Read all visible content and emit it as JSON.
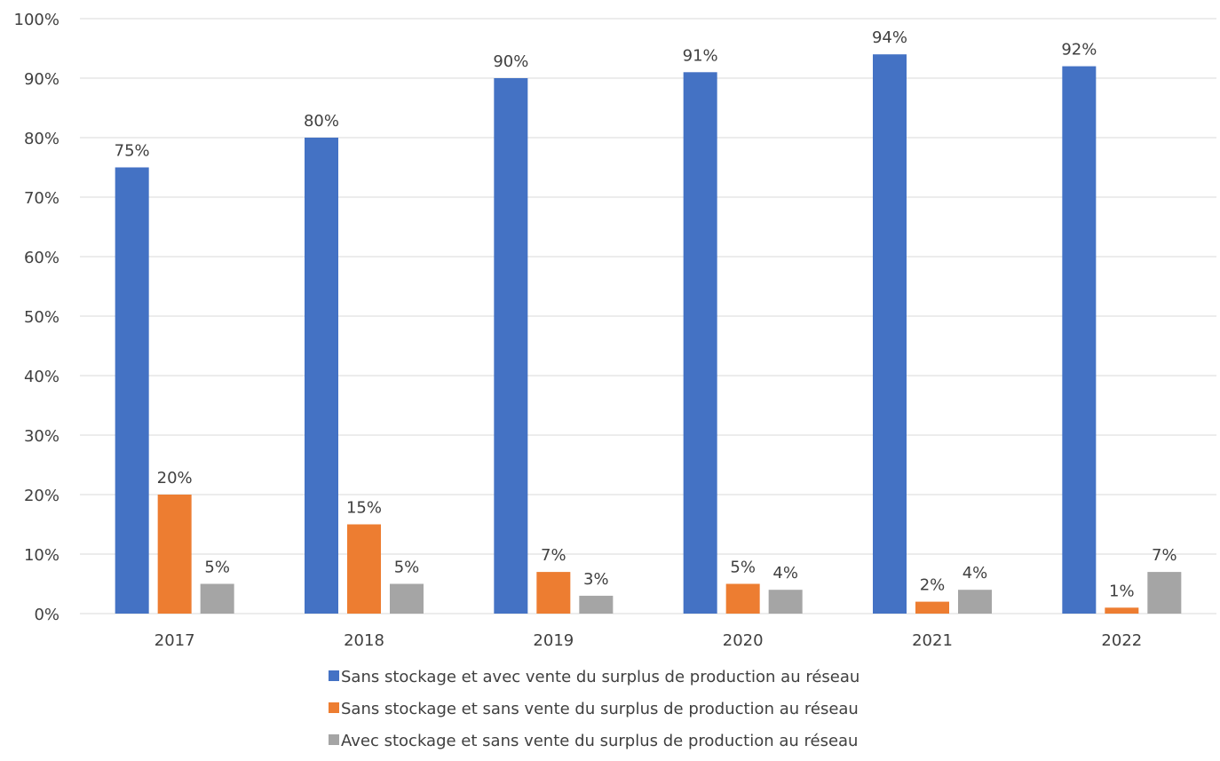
{
  "chart_data": {
    "type": "bar",
    "categories": [
      "2017",
      "2018",
      "2019",
      "2020",
      "2021",
      "2022"
    ],
    "series": [
      {
        "name": "Sans stockage et avec vente du surplus de production au réseau",
        "color": "#4472C4",
        "values": [
          75,
          80,
          90,
          91,
          94,
          92
        ],
        "labels": [
          "75%",
          "80%",
          "90%",
          "91%",
          "94%",
          "92%"
        ]
      },
      {
        "name": "Sans stockage et sans vente du surplus de production au réseau",
        "color": "#ED7D31",
        "values": [
          20,
          15,
          7,
          5,
          2,
          1
        ],
        "labels": [
          "20%",
          "15%",
          "7%",
          "5%",
          "2%",
          "1%"
        ]
      },
      {
        "name": "Avec stockage et sans vente du surplus de production au réseau",
        "color": "#A5A5A5",
        "values": [
          5,
          5,
          3,
          4,
          4,
          7
        ],
        "labels": [
          "5%",
          "5%",
          "3%",
          "4%",
          "4%",
          "7%"
        ]
      }
    ],
    "ylim": [
      0,
      100
    ],
    "yticks": [
      0,
      10,
      20,
      30,
      40,
      50,
      60,
      70,
      80,
      90,
      100
    ],
    "ytick_labels": [
      "0%",
      "10%",
      "20%",
      "30%",
      "40%",
      "50%",
      "60%",
      "70%",
      "80%",
      "90%",
      "100%"
    ],
    "grid": true,
    "legend_position": "bottom",
    "title": "",
    "xlabel": "",
    "ylabel": ""
  }
}
